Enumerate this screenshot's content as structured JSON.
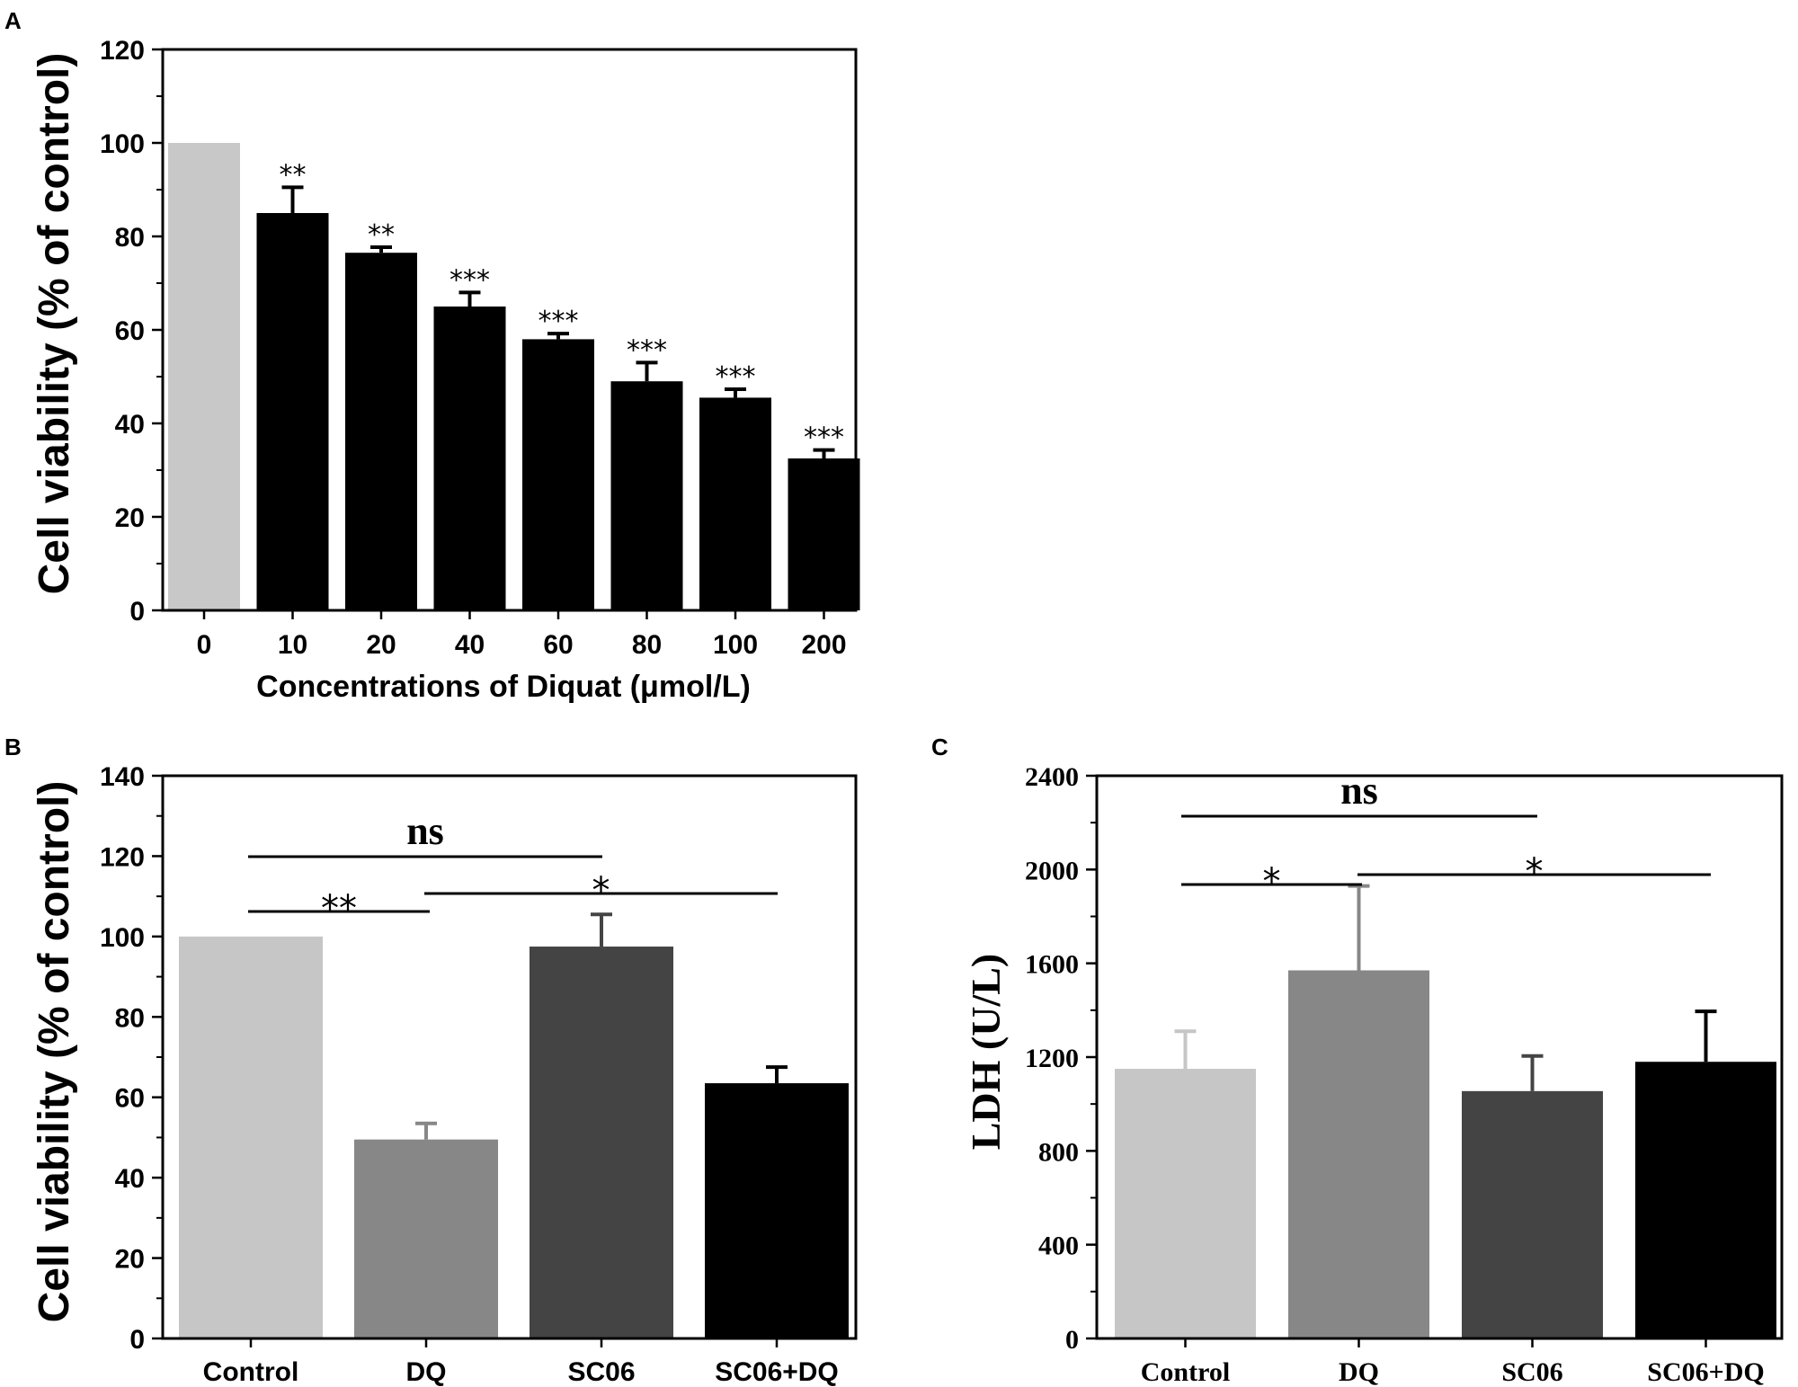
{
  "chart_data": [
    {
      "panel": "A",
      "type": "bar",
      "categories": [
        "0",
        "10",
        "20",
        "40",
        "60",
        "80",
        "100",
        "200"
      ],
      "values": [
        100,
        85,
        76.5,
        65,
        58,
        49,
        45.5,
        32.5
      ],
      "errors": [
        0,
        5.5,
        1.2,
        3,
        1.2,
        4,
        1.8,
        1.8
      ],
      "colors": [
        "#c8c8c8",
        "#000000",
        "#000000",
        "#000000",
        "#000000",
        "#000000",
        "#000000",
        "#000000"
      ],
      "significance": [
        "",
        "**",
        "**",
        "***",
        "***",
        "***",
        "***",
        "***"
      ],
      "ylabel": "Cell viability (% of control)",
      "xlabel": "Concentrations of  Diquat (μmol/L)",
      "ylim": [
        0,
        120
      ],
      "yticks": [
        "0",
        "20",
        "40",
        "60",
        "80",
        "100",
        "120"
      ]
    },
    {
      "panel": "B",
      "type": "bar",
      "categories": [
        "Control",
        "DQ",
        "SC06",
        "SC06+DQ"
      ],
      "values": [
        100,
        49.5,
        97.5,
        63.5
      ],
      "errors": [
        0,
        4,
        8,
        4
      ],
      "colors": [
        "#c6c6c6",
        "#878787",
        "#444444",
        "#000000"
      ],
      "comparisons": [
        {
          "from": 0,
          "to": 2,
          "label": "ns"
        },
        {
          "from": 0,
          "to": 1,
          "label": "**"
        },
        {
          "from": 1,
          "to": 3,
          "label": "*"
        }
      ],
      "ylabel": "Cell viability (% of control)",
      "ylim": [
        0,
        140
      ],
      "yticks": [
        "0",
        "20",
        "40",
        "60",
        "80",
        "100",
        "120",
        "140"
      ]
    },
    {
      "panel": "C",
      "type": "bar",
      "categories": [
        "Control",
        "DQ",
        "SC06",
        "SC06+DQ"
      ],
      "values": [
        1150,
        1570,
        1055,
        1180
      ],
      "errors": [
        160,
        360,
        150,
        215
      ],
      "colors": [
        "#c6c6c6",
        "#878787",
        "#444444",
        "#000000"
      ],
      "comparisons": [
        {
          "from": 0,
          "to": 2,
          "label": "ns"
        },
        {
          "from": 0,
          "to": 1,
          "label": "*"
        },
        {
          "from": 1,
          "to": 3,
          "label": "*"
        }
      ],
      "ylabel": "LDH (U/L)",
      "ylim": [
        0,
        2400
      ],
      "yticks": [
        "0",
        "400",
        "800",
        "1200",
        "1600",
        "2000",
        "2400"
      ]
    }
  ]
}
